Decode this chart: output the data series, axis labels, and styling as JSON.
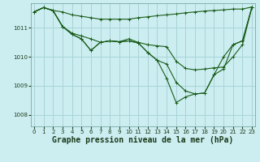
{
  "background_color": "#cceef0",
  "grid_color": "#a8d4d8",
  "line_color": "#1a5c1a",
  "xlabel": "Graphe pression niveau de la mer (hPa)",
  "xlabel_fontsize": 7,
  "ytick_labels": [
    "1008",
    "1009",
    "1010",
    "1011"
  ],
  "yticks": [
    1008,
    1009,
    1010,
    1011
  ],
  "xticks": [
    0,
    1,
    2,
    3,
    4,
    5,
    6,
    7,
    8,
    9,
    10,
    11,
    12,
    13,
    14,
    15,
    16,
    17,
    18,
    19,
    20,
    21,
    22,
    23
  ],
  "xlim": [
    -0.3,
    23.3
  ],
  "ylim": [
    1007.6,
    1011.85
  ],
  "series": [
    [
      1011.55,
      1011.7,
      1011.6,
      1011.55,
      1011.45,
      1011.4,
      1011.35,
      1011.3,
      1011.3,
      1011.3,
      1011.3,
      1011.35,
      1011.38,
      1011.42,
      1011.45,
      1011.48,
      1011.52,
      1011.55,
      1011.58,
      1011.6,
      1011.62,
      1011.65,
      1011.65,
      1011.72
    ],
    [
      1011.55,
      1011.7,
      1011.6,
      1011.05,
      1010.82,
      1010.72,
      1010.62,
      1010.5,
      1010.55,
      1010.52,
      1010.62,
      1010.5,
      1010.42,
      1010.38,
      1010.35,
      1009.85,
      1009.6,
      1009.55,
      1009.58,
      1009.62,
      1009.65,
      1010.0,
      1010.42,
      1011.72
    ],
    [
      1011.55,
      1011.7,
      1011.6,
      1011.05,
      1010.78,
      1010.62,
      1010.22,
      1010.5,
      1010.55,
      1010.52,
      1010.55,
      1010.48,
      1010.15,
      1009.88,
      1009.75,
      1009.12,
      1008.82,
      1008.72,
      1008.75,
      1009.38,
      1009.58,
      1010.42,
      1010.55,
      1011.72
    ],
    [
      1011.55,
      1011.7,
      1011.6,
      1011.05,
      1010.78,
      1010.62,
      1010.22,
      1010.5,
      1010.55,
      1010.52,
      1010.55,
      1010.48,
      1010.15,
      1009.88,
      1009.25,
      1008.42,
      1008.62,
      1008.72,
      1008.75,
      1009.38,
      1010.0,
      1010.42,
      1010.55,
      1011.72
    ]
  ]
}
